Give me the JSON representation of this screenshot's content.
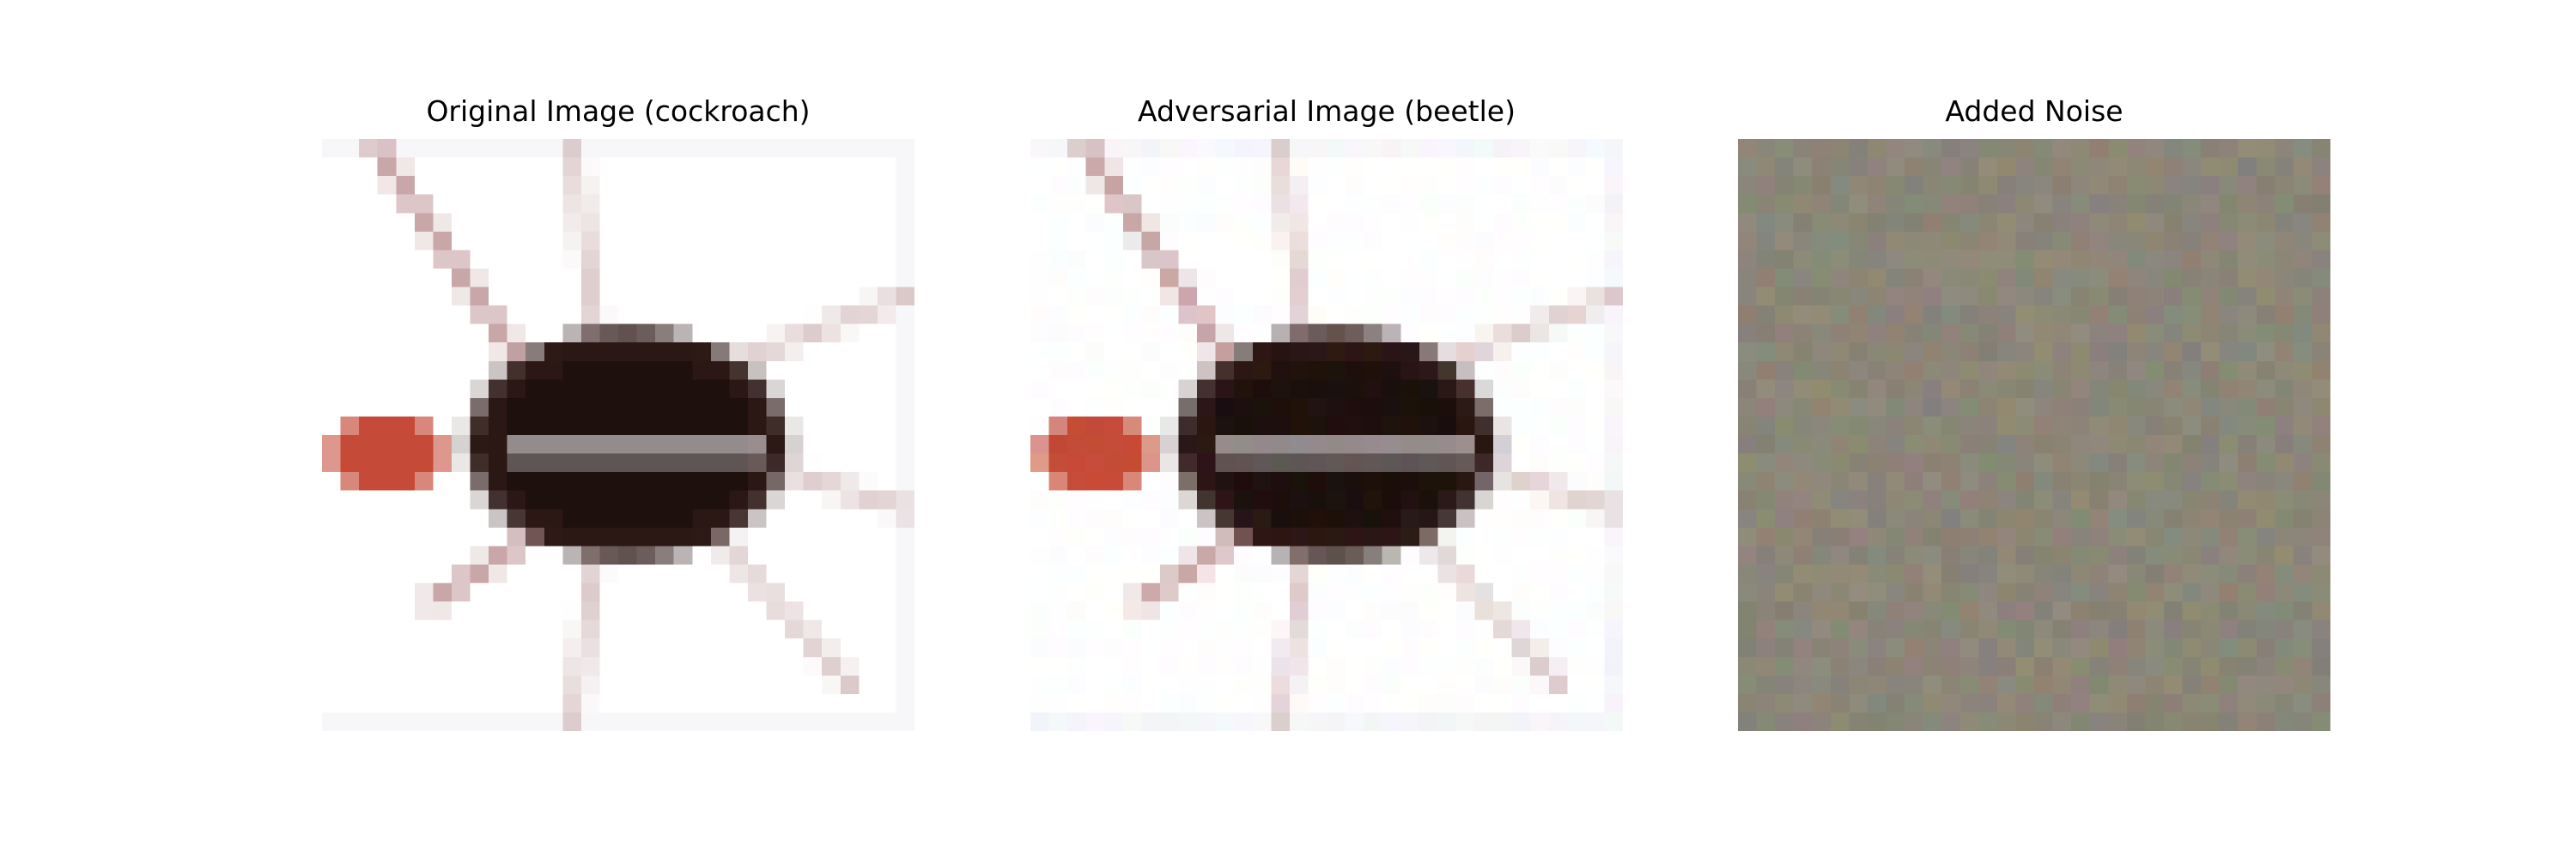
{
  "panels": [
    {
      "title": "Original Image (cockroach)"
    },
    {
      "title": "Adversarial Image (beetle)"
    },
    {
      "title": "Added Noise"
    }
  ],
  "colors": {
    "background": "#ffffff",
    "body": "#2b1714",
    "body_dark": "#1d100d",
    "head": "#c54a37",
    "leg": "#b88a8d",
    "leg_light": "#d8c4c5",
    "highlight": "#c8c0c4",
    "noise_base": "#8b8678"
  }
}
